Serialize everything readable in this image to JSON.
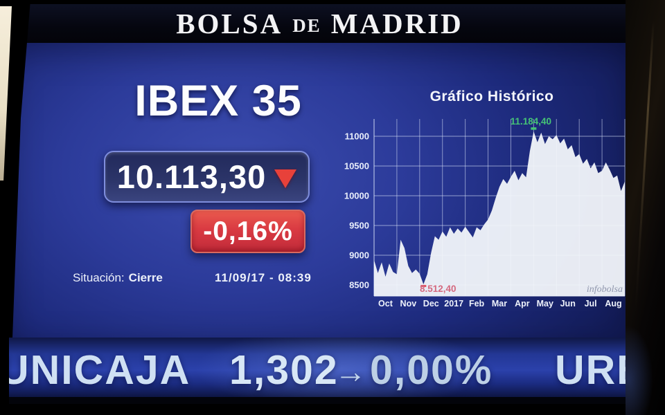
{
  "header": {
    "title_bolsa": "BOLSA",
    "title_de": "de",
    "title_madrid": "MADRID"
  },
  "index_panel": {
    "name": "IBEX 35",
    "last_value": "10.113,30",
    "direction_icon": "red-down-triangle",
    "change_pct": "-0,16%",
    "status_label": "Situación:",
    "status_value": "Cierre",
    "datetime": "11/09/17 - 08:39"
  },
  "chart_data": {
    "type": "area",
    "title": "Gráfico Histórico",
    "x_tick_labels": [
      "Oct",
      "Nov",
      "Dec",
      "2017",
      "Feb",
      "Mar",
      "Apr",
      "May",
      "Jun",
      "Jul",
      "Aug"
    ],
    "y_ticks": [
      11000,
      10500,
      10000,
      9500,
      9000,
      8500
    ],
    "ylim": [
      8290,
      11260
    ],
    "grid": true,
    "values": [
      8920,
      8700,
      8880,
      8640,
      8860,
      8720,
      8680,
      9260,
      9120,
      8820,
      8700,
      8760,
      8690,
      8512,
      8680,
      9040,
      9320,
      9260,
      9400,
      9310,
      9470,
      9360,
      9450,
      9380,
      9480,
      9390,
      9300,
      9470,
      9420,
      9520,
      9600,
      9750,
      9960,
      10150,
      10280,
      10200,
      10320,
      10420,
      10260,
      10380,
      10310,
      10750,
      11080,
      10900,
      11060,
      10870,
      11000,
      10950,
      11020,
      10880,
      10960,
      10780,
      10850,
      10650,
      10700,
      10540,
      10620,
      10460,
      10560,
      10380,
      10420,
      10560,
      10440,
      10300,
      10340,
      10080,
      10240
    ],
    "high_annotation": {
      "label": "11.184,40",
      "value": 11184.4,
      "index": 42
    },
    "low_annotation": {
      "label": "8.512,40",
      "value": 8512.4,
      "index": 13
    },
    "watermark": "infobolsa",
    "colors": {
      "area": "#f2f5fa",
      "grid": "#dce6fa",
      "axis_text": "#eef2fb",
      "high": "#45c476",
      "low": "#d4697f",
      "low_marker": "#e05562",
      "watermark": "#878fa6"
    }
  },
  "ticker": {
    "symbol": "UNICAJA",
    "price": "1,302",
    "arrow": "→",
    "change_pct": "0,00%",
    "next_symbol": "URBAS"
  }
}
